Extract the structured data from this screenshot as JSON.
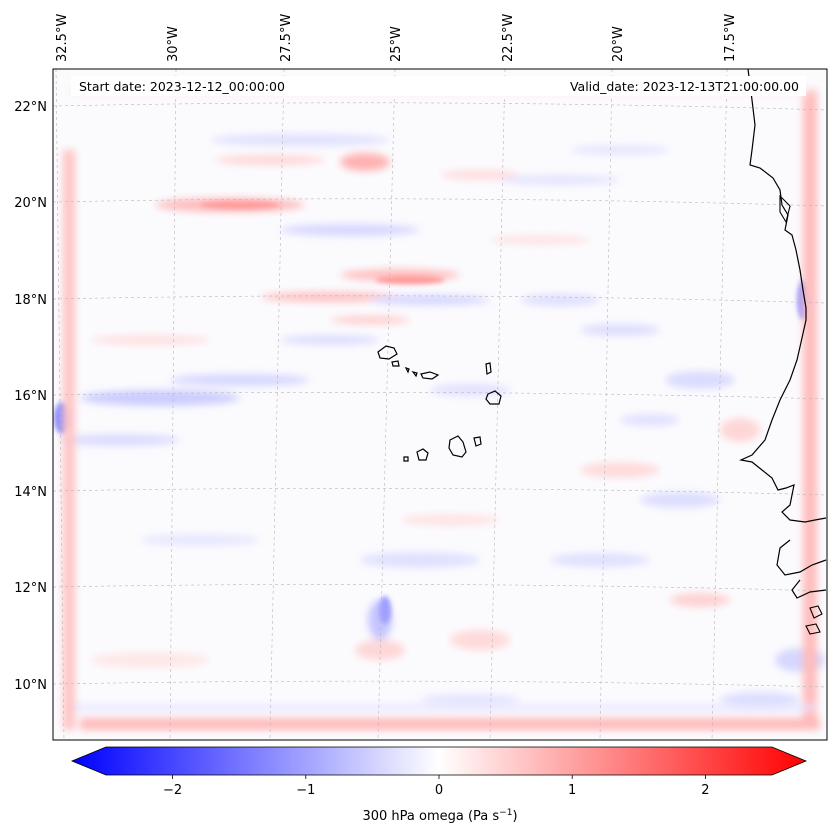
{
  "map": {
    "start_date_label": "Start date: 2023-12-12_00:00:00",
    "valid_date_label": "Valid_date: 2023-12-13T21:00:00.00",
    "lon_labels": [
      "32.5°W",
      "30°W",
      "27.5°W",
      "25°W",
      "22.5°W",
      "20°W",
      "17.5°W"
    ],
    "lat_labels": [
      "22°N",
      "20°N",
      "18°N",
      "16°N",
      "14°N",
      "12°N",
      "10°N"
    ],
    "field": "300 hPa omega",
    "region": "Cabo Verde / West Africa coast"
  },
  "colorbar": {
    "label_text": "300 hPa omega (Pa s",
    "label_sup": "−1",
    "label_close": ")",
    "ticks": [
      "−2",
      "−1",
      "0",
      "1",
      "2"
    ],
    "tick_values": [
      -2,
      -1,
      0,
      1,
      2
    ],
    "vmin": -2.5,
    "vmax": 2.5,
    "cmap": "bwr",
    "colors": {
      "negative": "#0000ff",
      "zero": "#ffffff",
      "positive": "#ff0000"
    }
  }
}
